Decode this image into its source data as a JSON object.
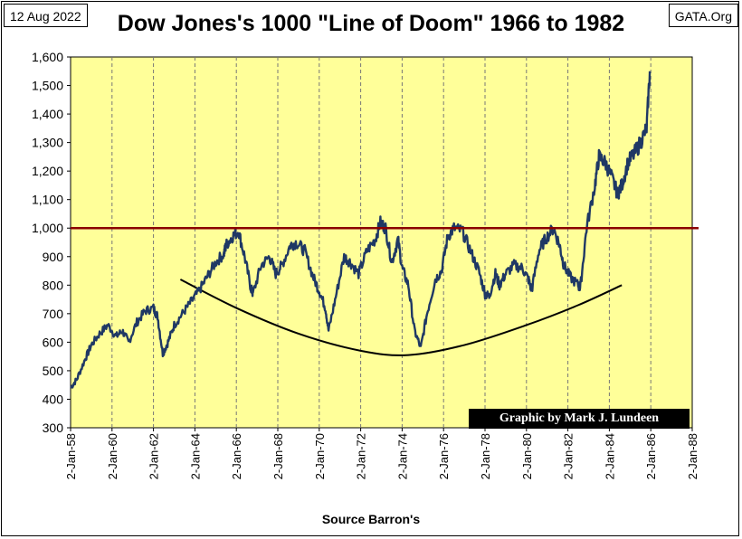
{
  "header": {
    "date": "12 Aug 2022",
    "source_badge": "GATA.Org",
    "title": "Dow Jones's 1000 \"Line of Doom\" 1966 to 1982"
  },
  "footer": {
    "x_caption": "Source Barron's",
    "credit": "Graphic by Mark J. Lundeen"
  },
  "colors": {
    "plot_bg": "#FFFF99",
    "series": "#1F3864",
    "doom_line": "#8B0000",
    "trend_curve": "#000000"
  },
  "chart_data": {
    "type": "line",
    "title": "Dow Jones's 1000 \"Line of Doom\" 1966 to 1982",
    "xlabel": "Source Barron's",
    "ylabel": "",
    "ylim": [
      300,
      1600
    ],
    "xlim": [
      "1958-01-02",
      "1988-01-02"
    ],
    "grid": "vertical",
    "y_ticks": [
      "300",
      "400",
      "500",
      "600",
      "700",
      "800",
      "900",
      "1,000",
      "1,100",
      "1,200",
      "1,300",
      "1,400",
      "1,500",
      "1,600"
    ],
    "y_tick_values": [
      300,
      400,
      500,
      600,
      700,
      800,
      900,
      1000,
      1100,
      1200,
      1300,
      1400,
      1500,
      1600
    ],
    "x_ticks": [
      "2-Jan-58",
      "2-Jan-60",
      "2-Jan-62",
      "2-Jan-64",
      "2-Jan-66",
      "2-Jan-68",
      "2-Jan-70",
      "2-Jan-72",
      "2-Jan-74",
      "2-Jan-76",
      "2-Jan-78",
      "2-Jan-80",
      "2-Jan-82",
      "2-Jan-84",
      "2-Jan-86",
      "2-Jan-88"
    ],
    "x_tick_years": [
      1958,
      1960,
      1962,
      1964,
      1966,
      1968,
      1970,
      1972,
      1974,
      1976,
      1978,
      1980,
      1982,
      1984,
      1986,
      1988
    ],
    "series": [
      {
        "x": [
          1958.0,
          1958.3,
          1958.7,
          1959.0,
          1959.4,
          1959.8,
          1960.2,
          1960.5,
          1960.8,
          1961.2,
          1961.6,
          1962.0,
          1962.2,
          1962.45,
          1962.7,
          1963.0,
          1963.4,
          1963.8,
          1964.2,
          1964.6,
          1965.0,
          1965.4,
          1965.5,
          1965.8,
          1966.1,
          1966.4,
          1966.7,
          1966.8,
          1967.2,
          1967.6,
          1967.9,
          1968.2,
          1968.6,
          1968.9,
          1969.3,
          1969.7,
          1970.0,
          1970.3,
          1970.45,
          1970.8,
          1971.2,
          1971.5,
          1971.9,
          1972.3,
          1972.7,
          1972.95,
          1973.2,
          1973.5,
          1973.8,
          1974.0,
          1974.3,
          1974.6,
          1974.9,
          1975.2,
          1975.6,
          1975.9,
          1976.2,
          1976.5,
          1976.9,
          1977.3,
          1977.7,
          1978.0,
          1978.2,
          1978.5,
          1978.7,
          1979.0,
          1979.4,
          1979.8,
          1980.1,
          1980.25,
          1980.6,
          1980.9,
          1981.3,
          1981.6,
          1981.8,
          1982.1,
          1982.5,
          1982.6,
          1982.9,
          1983.3,
          1983.5,
          1983.8,
          1984.1,
          1984.4,
          1984.6,
          1984.9,
          1985.2,
          1985.5,
          1985.8,
          1985.95
        ],
        "values": [
          440,
          470,
          540,
          590,
          630,
          660,
          620,
          640,
          600,
          670,
          710,
          720,
          690,
          560,
          600,
          660,
          700,
          740,
          780,
          830,
          880,
          910,
          940,
          970,
          990,
          900,
          790,
          770,
          870,
          900,
          840,
          870,
          940,
          950,
          920,
          830,
          780,
          720,
          640,
          760,
          900,
          880,
          840,
          920,
          960,
          1020,
          1000,
          880,
          960,
          860,
          800,
          640,
          580,
          700,
          820,
          850,
          970,
          1000,
          990,
          920,
          850,
          770,
          760,
          840,
          800,
          840,
          870,
          860,
          820,
          780,
          920,
          960,
          1000,
          940,
          870,
          830,
          800,
          790,
          1000,
          1150,
          1250,
          1230,
          1180,
          1120,
          1150,
          1230,
          1260,
          1300,
          1350,
          1550
        ]
      },
      {
        "name": "Line of Doom",
        "x": [
          1958,
          1988
        ],
        "values": [
          1000,
          1000
        ]
      },
      {
        "x": [
          1963.3,
          1966,
          1969,
          1972,
          1974.3,
          1977,
          1980,
          1982.5,
          1984.6
        ],
        "values": [
          820,
          720,
          630,
          570,
          555,
          590,
          660,
          730,
          800
        ]
      }
    ]
  }
}
